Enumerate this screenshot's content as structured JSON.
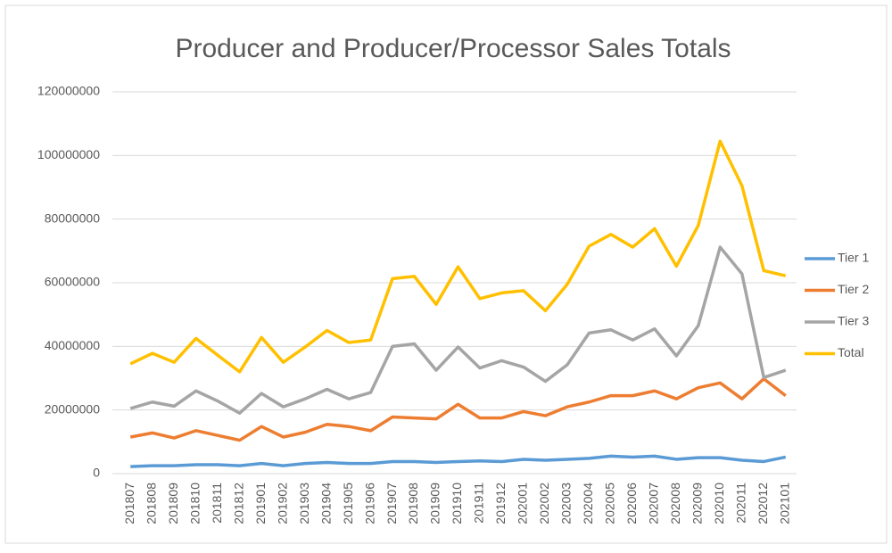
{
  "chart_data": {
    "type": "line",
    "title": "Producer and Producer/Processor Sales Totals",
    "categories": [
      "201807",
      "201808",
      "201809",
      "201810",
      "201811",
      "201812",
      "201901",
      "201902",
      "201903",
      "201904",
      "201905",
      "201906",
      "201907",
      "201908",
      "201909",
      "201910",
      "201911",
      "201912",
      "202001",
      "202002",
      "202003",
      "202004",
      "202005",
      "202006",
      "202007",
      "202008",
      "202009",
      "202010",
      "202011",
      "202012",
      "202101"
    ],
    "series": [
      {
        "name": "Tier 1",
        "color": "#5b9bd5",
        "values": [
          2200000,
          2500000,
          2500000,
          2800000,
          2800000,
          2500000,
          3200000,
          2500000,
          3200000,
          3500000,
          3200000,
          3200000,
          3800000,
          3800000,
          3500000,
          3800000,
          4000000,
          3800000,
          4500000,
          4200000,
          4500000,
          4800000,
          5500000,
          5200000,
          5500000,
          4500000,
          5000000,
          5000000,
          4200000,
          3800000,
          5200000
        ]
      },
      {
        "name": "Tier 2",
        "color": "#ed7d31",
        "values": [
          11500000,
          12800000,
          11200000,
          13500000,
          12000000,
          10500000,
          14800000,
          11500000,
          13000000,
          15500000,
          14800000,
          13500000,
          17800000,
          17500000,
          17200000,
          21800000,
          17500000,
          17500000,
          19500000,
          18200000,
          21000000,
          22500000,
          24500000,
          24500000,
          26000000,
          23500000,
          27000000,
          28500000,
          23500000,
          29800000,
          24500000
        ]
      },
      {
        "name": "Tier 3",
        "color": "#a5a5a5",
        "values": [
          20500000,
          22500000,
          21200000,
          26000000,
          22800000,
          19000000,
          25200000,
          21000000,
          23500000,
          26500000,
          23500000,
          25500000,
          40000000,
          40800000,
          32500000,
          39800000,
          33200000,
          35500000,
          33500000,
          29000000,
          34200000,
          44200000,
          45200000,
          42000000,
          45500000,
          37000000,
          46500000,
          71200000,
          62800000,
          30200000,
          32500000
        ]
      },
      {
        "name": "Total",
        "color": "#ffc000",
        "values": [
          34500000,
          37800000,
          35000000,
          42500000,
          37200000,
          32000000,
          42800000,
          35000000,
          39800000,
          45000000,
          41200000,
          42000000,
          61300000,
          62000000,
          53200000,
          65000000,
          55000000,
          56800000,
          57500000,
          51200000,
          59500000,
          71500000,
          75200000,
          71200000,
          77000000,
          65200000,
          78000000,
          104500000,
          90500000,
          63800000,
          62200000
        ]
      }
    ],
    "ylim": [
      0,
      120000000
    ],
    "yticks": [
      0,
      20000000,
      40000000,
      60000000,
      80000000,
      100000000,
      120000000
    ],
    "grid": true,
    "legend": "right"
  }
}
